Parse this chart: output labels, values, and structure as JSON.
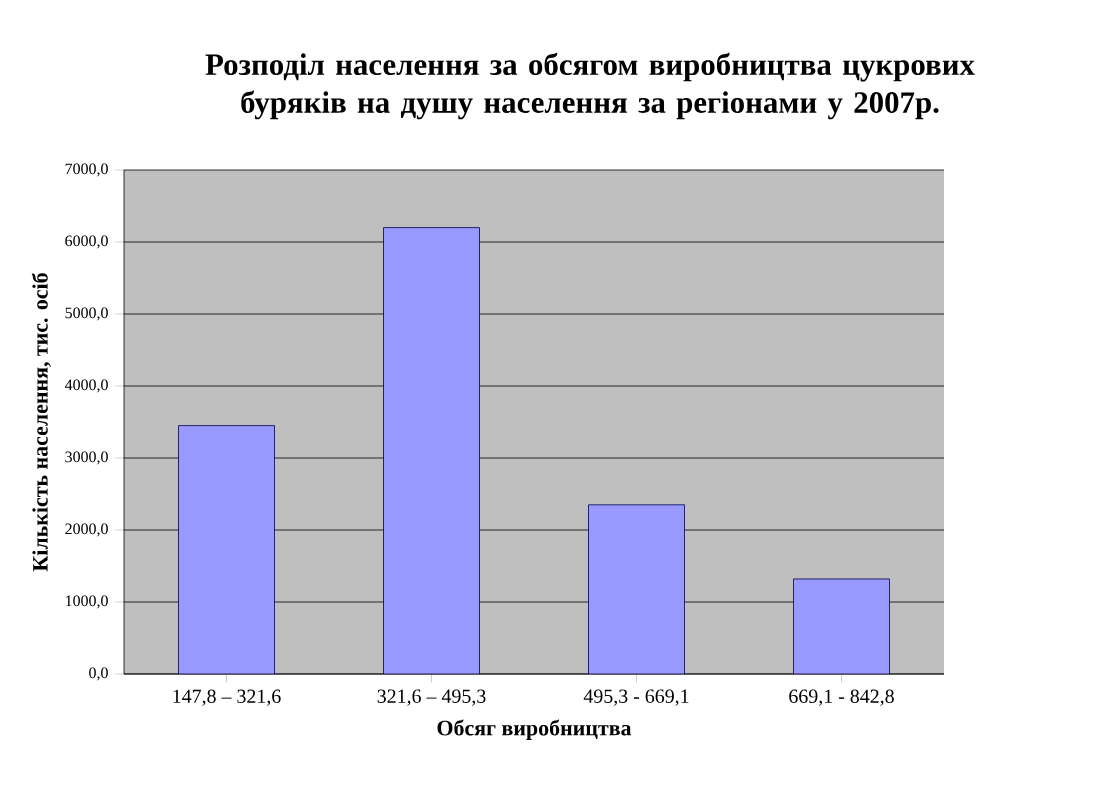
{
  "chart_data": {
    "type": "bar",
    "title": "Розподіл населення за обсягом виробництва цукрових буряків на душу населення за регіонами у 2007р.",
    "xlabel": "Обсяг виробництва",
    "ylabel": "Кількість населення, тис. осіб",
    "categories": [
      "147,8 – 321,6",
      "321,6 – 495,3",
      "495,3 - 669,1",
      "669,1 - 842,8"
    ],
    "values": [
      3450,
      6200,
      2350,
      1320
    ],
    "color": "#9999ff",
    "ylim": [
      0,
      7000
    ],
    "yticks": [
      {
        "value": 0,
        "label": "0,0"
      },
      {
        "value": 1000,
        "label": "1000,0"
      },
      {
        "value": 2000,
        "label": "2000,0"
      },
      {
        "value": 3000,
        "label": "3000,0"
      },
      {
        "value": 4000,
        "label": "4000,0"
      },
      {
        "value": 5000,
        "label": "5000,0"
      },
      {
        "value": 6000,
        "label": "6000,0"
      },
      {
        "value": 7000,
        "label": "7000,0"
      }
    ],
    "grid": "y"
  }
}
